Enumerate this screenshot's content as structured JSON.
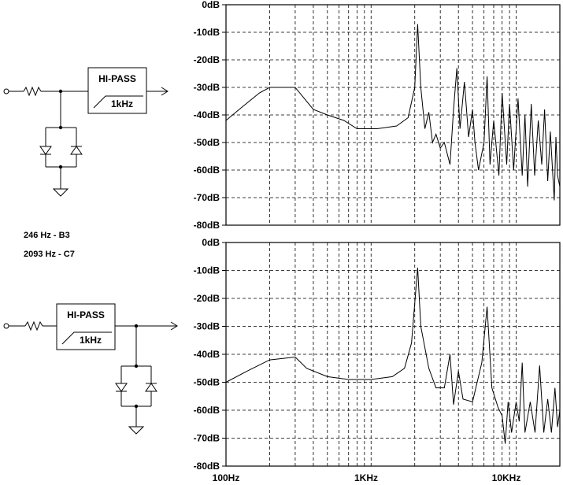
{
  "circuit_top": {
    "filter_title": "HI-PASS",
    "filter_freq": "1kHz"
  },
  "circuit_bottom": {
    "filter_title": "HI-PASS",
    "filter_freq": "1kHz"
  },
  "notes": {
    "line1": "246 Hz  -  B3",
    "line2": "2093 Hz - C7"
  },
  "chart_data": [
    {
      "type": "line",
      "title": "",
      "xlabel": "",
      "ylabel": "",
      "x_scale": "log",
      "xlim": [
        100,
        20000
      ],
      "ylim": [
        -80,
        0
      ],
      "y_ticks": [
        "0dB",
        "-10dB",
        "-20dB",
        "-30dB",
        "-40dB",
        "-50dB",
        "-60dB",
        "-70dB",
        "-80dB"
      ],
      "x_ticks": [],
      "grid": true,
      "series": [
        {
          "points": [
            [
              100,
              -42
            ],
            [
              130,
              -37
            ],
            [
              170,
              -32
            ],
            [
              200,
              -30
            ],
            [
              300,
              -30
            ],
            [
              400,
              -38
            ],
            [
              500,
              -40
            ],
            [
              650,
              -42
            ],
            [
              800,
              -45
            ],
            [
              1100,
              -45
            ],
            [
              1500,
              -44
            ],
            [
              1800,
              -41
            ],
            [
              2000,
              -30
            ],
            [
              2093,
              -7
            ],
            [
              2200,
              -30
            ],
            [
              2350,
              -45
            ],
            [
              2500,
              -39
            ],
            [
              2650,
              -50
            ],
            [
              2800,
              -47
            ],
            [
              3000,
              -52
            ],
            [
              3200,
              -50
            ],
            [
              3500,
              -58
            ],
            [
              3700,
              -38
            ],
            [
              3900,
              -23
            ],
            [
              4100,
              -45
            ],
            [
              4400,
              -28
            ],
            [
              4700,
              -48
            ],
            [
              5000,
              -38
            ],
            [
              5200,
              -50
            ],
            [
              5500,
              -60
            ],
            [
              6000,
              -50
            ],
            [
              6300,
              -26
            ],
            [
              6600,
              -58
            ],
            [
              7000,
              -42
            ],
            [
              7600,
              -62
            ],
            [
              8000,
              -32
            ],
            [
              8600,
              -58
            ],
            [
              9000,
              -36
            ],
            [
              9600,
              -60
            ],
            [
              10300,
              -34
            ],
            [
              11000,
              -62
            ],
            [
              11500,
              -40
            ],
            [
              12000,
              -66
            ],
            [
              12700,
              -36
            ],
            [
              13400,
              -62
            ],
            [
              14200,
              -42
            ],
            [
              15000,
              -58
            ],
            [
              15700,
              -38
            ],
            [
              16500,
              -64
            ],
            [
              17200,
              -46
            ],
            [
              17800,
              -60
            ],
            [
              18300,
              -71
            ],
            [
              18800,
              -48
            ],
            [
              19300,
              -62
            ],
            [
              20000,
              -66
            ]
          ]
        }
      ]
    },
    {
      "type": "line",
      "title": "",
      "xlabel": "",
      "ylabel": "",
      "x_scale": "log",
      "xlim": [
        100,
        20000
      ],
      "ylim": [
        -80,
        0
      ],
      "y_ticks": [
        "0dB",
        "-10dB",
        "-20dB",
        "-30dB",
        "-40dB",
        "-50dB",
        "-60dB",
        "-70dB",
        "-80dB"
      ],
      "x_ticks": [
        "100Hz",
        "1KHz",
        "10KHz"
      ],
      "grid": true,
      "series": [
        {
          "points": [
            [
              100,
              -50
            ],
            [
              140,
              -46
            ],
            [
              200,
              -42
            ],
            [
              300,
              -41
            ],
            [
              360,
              -45
            ],
            [
              500,
              -48
            ],
            [
              700,
              -49
            ],
            [
              1000,
              -49
            ],
            [
              1400,
              -48
            ],
            [
              1700,
              -45
            ],
            [
              1900,
              -36
            ],
            [
              2093,
              -9
            ],
            [
              2200,
              -30
            ],
            [
              2500,
              -45
            ],
            [
              2800,
              -52
            ],
            [
              3200,
              -52
            ],
            [
              3500,
              -40
            ],
            [
              3700,
              -58
            ],
            [
              4000,
              -46
            ],
            [
              4300,
              -56
            ],
            [
              5000,
              -57
            ],
            [
              5800,
              -43
            ],
            [
              6300,
              -23
            ],
            [
              6800,
              -52
            ],
            [
              7500,
              -59
            ],
            [
              8000,
              -62
            ],
            [
              8400,
              -72
            ],
            [
              8800,
              -57
            ],
            [
              9300,
              -68
            ],
            [
              10000,
              -57
            ],
            [
              10500,
              -64
            ],
            [
              11000,
              -43
            ],
            [
              11500,
              -68
            ],
            [
              12500,
              -57
            ],
            [
              13500,
              -68
            ],
            [
              14500,
              -44
            ],
            [
              15500,
              -68
            ],
            [
              16500,
              -56
            ],
            [
              17500,
              -68
            ],
            [
              18500,
              -52
            ],
            [
              19300,
              -66
            ],
            [
              20000,
              -60
            ]
          ]
        }
      ]
    }
  ]
}
